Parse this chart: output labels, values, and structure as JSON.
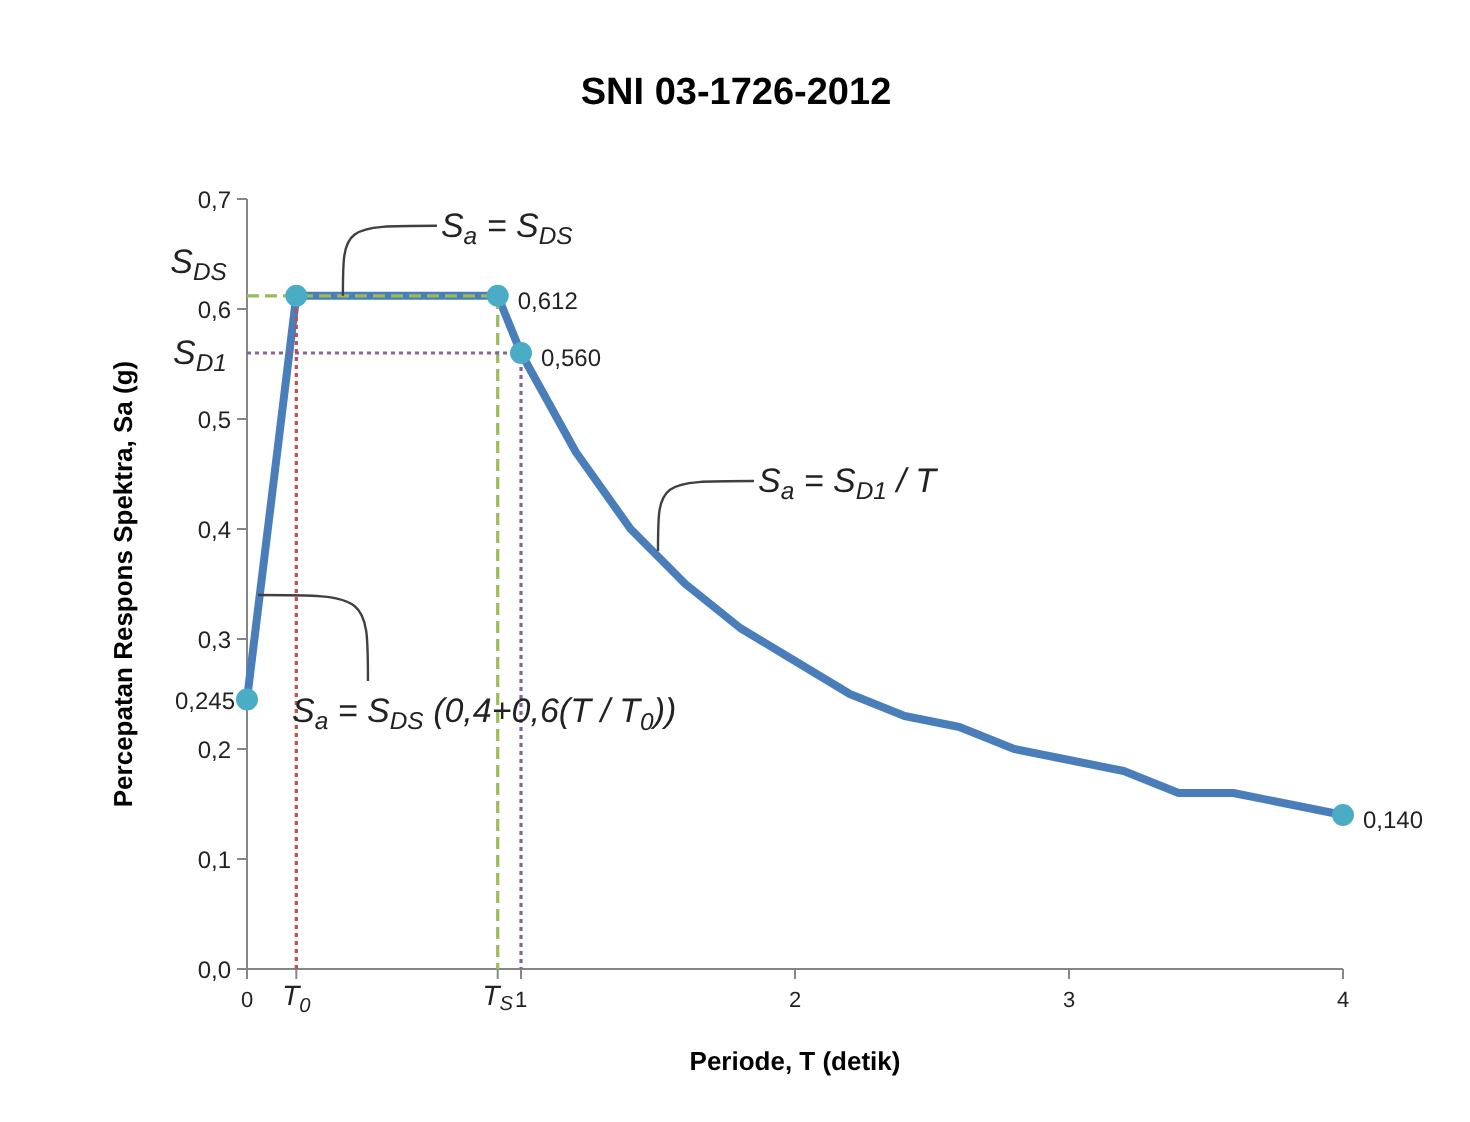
{
  "chart_data": {
    "type": "line",
    "title": "SNI 03-1726-2012",
    "xlabel": "Periode, T (detik)",
    "ylabel": "Percepatan Respons Spektra, Sa (g)",
    "xlim": [
      0,
      4
    ],
    "ylim": [
      0,
      0.7
    ],
    "xticks": [
      0,
      {
        "value": 0.18,
        "label": "T$_{0}$"
      },
      {
        "value": 0.915,
        "label": "T$_{S}$"
      },
      1,
      2,
      3,
      4
    ],
    "yticks": [
      {
        "value": 0,
        "label": "0,0"
      },
      {
        "value": 0.1,
        "label": "0,1"
      },
      {
        "value": 0.2,
        "label": "0,2"
      },
      {
        "value": 0.3,
        "label": "0,3"
      },
      {
        "value": 0.4,
        "label": "0,4"
      },
      {
        "value": 0.5,
        "label": "0,5"
      },
      {
        "value": 0.6,
        "label": "0,6"
      },
      {
        "value": 0.7,
        "label": "0,7"
      }
    ],
    "grid": false,
    "series": [
      {
        "type": "line",
        "color": "#4a7eba",
        "marker": "none",
        "line_style": "solid",
        "x": [
          0,
          0.18,
          0.915,
          1,
          1.2,
          1.4,
          1.6,
          1.8,
          2.0,
          2.2,
          2.4,
          2.6,
          2.8,
          3.0,
          3.2,
          3.4,
          3.6,
          3.8,
          4.0
        ],
        "values": [
          0.245,
          0.612,
          0.612,
          0.56,
          0.47,
          0.4,
          0.35,
          0.31,
          0.28,
          0.25,
          0.23,
          0.22,
          0.2,
          0.19,
          0.18,
          0.16,
          0.16,
          0.15,
          0.14
        ]
      },
      {
        "type": "line",
        "color": "#9bbb59",
        "marker": "none",
        "line_style": "dashed",
        "x": [
          0,
          0.915,
          0.915
        ],
        "values": [
          0.612,
          0.612,
          0
        ]
      },
      {
        "type": "line",
        "color": "#8064a2",
        "marker": "none",
        "line_style": "dotted",
        "x": [
          0,
          1,
          1
        ],
        "values": [
          0.56,
          0.56,
          0
        ]
      },
      {
        "type": "line",
        "color": "#c0504d",
        "marker": "none",
        "line_style": "dotted",
        "x": [
          0.18,
          0.18
        ],
        "values": [
          0,
          0.612
        ]
      },
      {
        "type": "scatter",
        "color": "#4bacc6",
        "marker": "circle",
        "x": [
          0,
          0.18,
          0.915,
          1,
          4
        ],
        "values": [
          0.245,
          0.612,
          0.612,
          0.56,
          0.14
        ],
        "value_labels": [
          "0,245",
          null,
          "0,612",
          "0,560",
          "0,140"
        ]
      }
    ],
    "annotations": [
      {
        "text": "S$_{DS}$",
        "x": 0,
        "y": 0.612
      },
      {
        "text": "S$_{D1}$",
        "x": 0,
        "y": 0.56
      },
      {
        "text": "S$_{a}$ = S$_{DS}$",
        "x": 0.35,
        "y": 0.612
      },
      {
        "text": "S$_{a}$ = S$_{DS}$ (0,4+0,6(T / T$_{0}$))",
        "x": 0.04,
        "y": 0.34
      },
      {
        "text": "S$_{a}$ = S$_{D1}$ / T",
        "x": 1.5,
        "y": 0.38
      }
    ]
  }
}
